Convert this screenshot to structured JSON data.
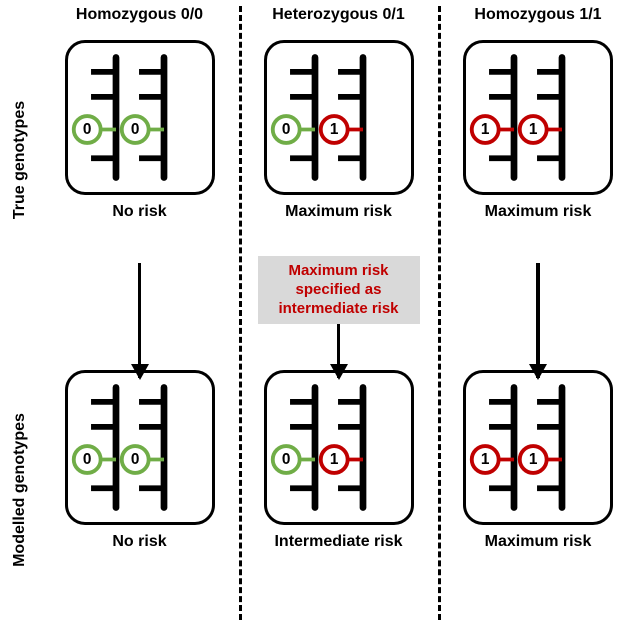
{
  "columns": [
    {
      "header": "Homozygous  0/0",
      "left_allele": 0,
      "right_allele": 0
    },
    {
      "header": "Heterozygous  0/1",
      "left_allele": 0,
      "right_allele": 1
    },
    {
      "header": "Homozygous  1/1",
      "left_allele": 1,
      "right_allele": 1
    }
  ],
  "rows": [
    {
      "header": "True genotypes"
    },
    {
      "header": "Modelled genotypes"
    }
  ],
  "risk_labels": {
    "true": [
      "No risk",
      "Maximum risk",
      "Maximum risk"
    ],
    "modelled": [
      "No risk",
      "Intermediate  risk",
      "Maximum risk"
    ]
  },
  "callout": {
    "line1": "Maximum risk",
    "line2": "specified as",
    "line3": "intermediate risk"
  },
  "colors": {
    "allele_0": "#70ad47",
    "allele_1": "#c00000",
    "chromosome": "#000000",
    "text": "#000000",
    "callout_bg": "#d9d9d9",
    "callout_text": "#c00000",
    "background": "#ffffff"
  },
  "style": {
    "header_fontsize": 16,
    "row_header_fontsize": 16,
    "risk_label_fontsize": 16,
    "callout_fontsize": 15,
    "chrom_stroke_width": 7,
    "tick_stroke_width": 6,
    "allele_stroke_width": 4,
    "allele_circle_radius": 14,
    "box_border_radius": 20,
    "box_border_width": 3.5,
    "arrow_width": 3.5,
    "arrow_head": 16,
    "divider_dash": "3px dashed"
  },
  "allele_label": {
    "0": "0",
    "1": "1"
  }
}
